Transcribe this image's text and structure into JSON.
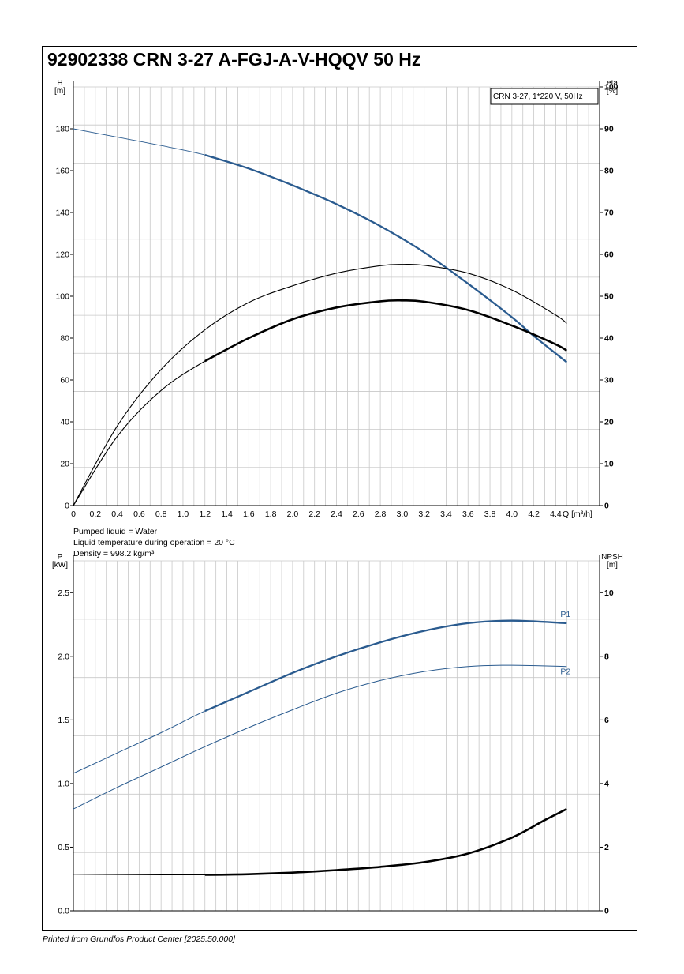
{
  "title": "92902338 CRN 3-27 A-FGJ-A-V-HQQV 50 Hz",
  "footer": "Printed from Grundfos Product Center [2025.50.000]",
  "liquid_info": {
    "pumped_liquid": "Pumped liquid = Water",
    "temperature": "Liquid temperature during operation = 20 °C",
    "density": "Density = 998.2 kg/m³"
  },
  "colors": {
    "blue": "#2a5b8f",
    "black": "#000000",
    "grid": "#c8c8c8"
  },
  "chart_data": [
    {
      "type": "line",
      "legend_box": "CRN 3-27, 1*220 V, 50Hz",
      "xlabel": "Q [m³/h]",
      "ylabel_left": [
        "H",
        "[m]"
      ],
      "ylabel_right": [
        "eta",
        "[%]"
      ],
      "xlim": [
        0,
        4.8
      ],
      "ylim_left": [
        0,
        200
      ],
      "ylim_right": [
        0,
        100
      ],
      "x_ticks": [
        "0",
        "0.2",
        "0.4",
        "0.6",
        "0.8",
        "1.0",
        "1.2",
        "1.4",
        "1.6",
        "1.8",
        "2.0",
        "2.2",
        "2.4",
        "2.6",
        "2.8",
        "3.0",
        "3.2",
        "3.4",
        "3.6",
        "3.8",
        "4.0",
        "4.2",
        "4.4"
      ],
      "y_ticks_left": [
        "0",
        "20",
        "40",
        "60",
        "80",
        "100",
        "120",
        "140",
        "160",
        "180"
      ],
      "y_ticks_right": [
        "0",
        "10",
        "20",
        "30",
        "40",
        "50",
        "60",
        "70",
        "80",
        "90",
        "100"
      ],
      "series": [
        {
          "name": "H",
          "axis": "left",
          "color": "#2a5b8f",
          "x": [
            0,
            0.4,
            0.8,
            1.2,
            1.6,
            2.0,
            2.4,
            2.8,
            3.2,
            3.6,
            4.0,
            4.2,
            4.5
          ],
          "y": [
            180,
            176,
            172,
            167.5,
            161,
            153,
            144,
            133.5,
            121,
            106,
            90,
            81,
            68.5
          ]
        },
        {
          "name": "eta (thin)",
          "axis": "right",
          "x": [
            0,
            0.4,
            0.8,
            1.2,
            1.6,
            2.0,
            2.4,
            2.8,
            3.0,
            3.2,
            3.6,
            4.0,
            4.4,
            4.5
          ],
          "y": [
            0,
            19,
            32.5,
            42,
            48.5,
            52.5,
            55.5,
            57.3,
            57.6,
            57.4,
            55.5,
            51.5,
            45.5,
            43.5
          ]
        },
        {
          "name": "eta (bold)",
          "axis": "right",
          "x": [
            0,
            0.4,
            0.8,
            1.2,
            1.6,
            2.0,
            2.4,
            2.8,
            3.0,
            3.2,
            3.6,
            4.0,
            4.4,
            4.5
          ],
          "y": [
            0,
            16.5,
            27.5,
            34.5,
            40,
            44.5,
            47.3,
            48.8,
            49,
            48.7,
            46.7,
            43,
            38.5,
            37
          ]
        }
      ]
    },
    {
      "type": "line",
      "xlabel": "",
      "ylabel_left": [
        "P",
        "[kW]"
      ],
      "ylabel_right": [
        "NPSH",
        "[m]"
      ],
      "xlim": [
        0,
        4.8
      ],
      "ylim_left": [
        0,
        2.75
      ],
      "ylim_right": [
        0,
        11
      ],
      "y_ticks_left": [
        "0.0",
        "0.5",
        "1.0",
        "1.5",
        "2.0",
        "2.5"
      ],
      "y_ticks_right": [
        "0",
        "2",
        "4",
        "6",
        "8",
        "10"
      ],
      "series": [
        {
          "name": "P1",
          "axis": "left",
          "color": "#2a5b8f",
          "x": [
            0,
            0.4,
            0.8,
            1.2,
            1.6,
            2.0,
            2.4,
            2.8,
            3.2,
            3.6,
            4.0,
            4.5
          ],
          "y": [
            1.08,
            1.24,
            1.4,
            1.57,
            1.72,
            1.87,
            2.0,
            2.11,
            2.2,
            2.26,
            2.28,
            2.26
          ]
        },
        {
          "name": "P2",
          "axis": "left",
          "color": "#2a5b8f",
          "x": [
            0,
            0.4,
            0.8,
            1.2,
            1.6,
            2.0,
            2.4,
            2.8,
            3.2,
            3.6,
            4.0,
            4.5
          ],
          "y": [
            0.8,
            0.97,
            1.13,
            1.29,
            1.44,
            1.58,
            1.71,
            1.81,
            1.88,
            1.92,
            1.93,
            1.92
          ]
        },
        {
          "name": "NPSH",
          "axis": "right",
          "x": [
            0,
            0.4,
            0.8,
            1.2,
            1.6,
            2.0,
            2.4,
            2.8,
            3.2,
            3.6,
            4.0,
            4.3,
            4.5
          ],
          "y": [
            1.15,
            1.14,
            1.13,
            1.13,
            1.15,
            1.2,
            1.28,
            1.38,
            1.53,
            1.8,
            2.3,
            2.85,
            3.2
          ]
        }
      ]
    }
  ]
}
